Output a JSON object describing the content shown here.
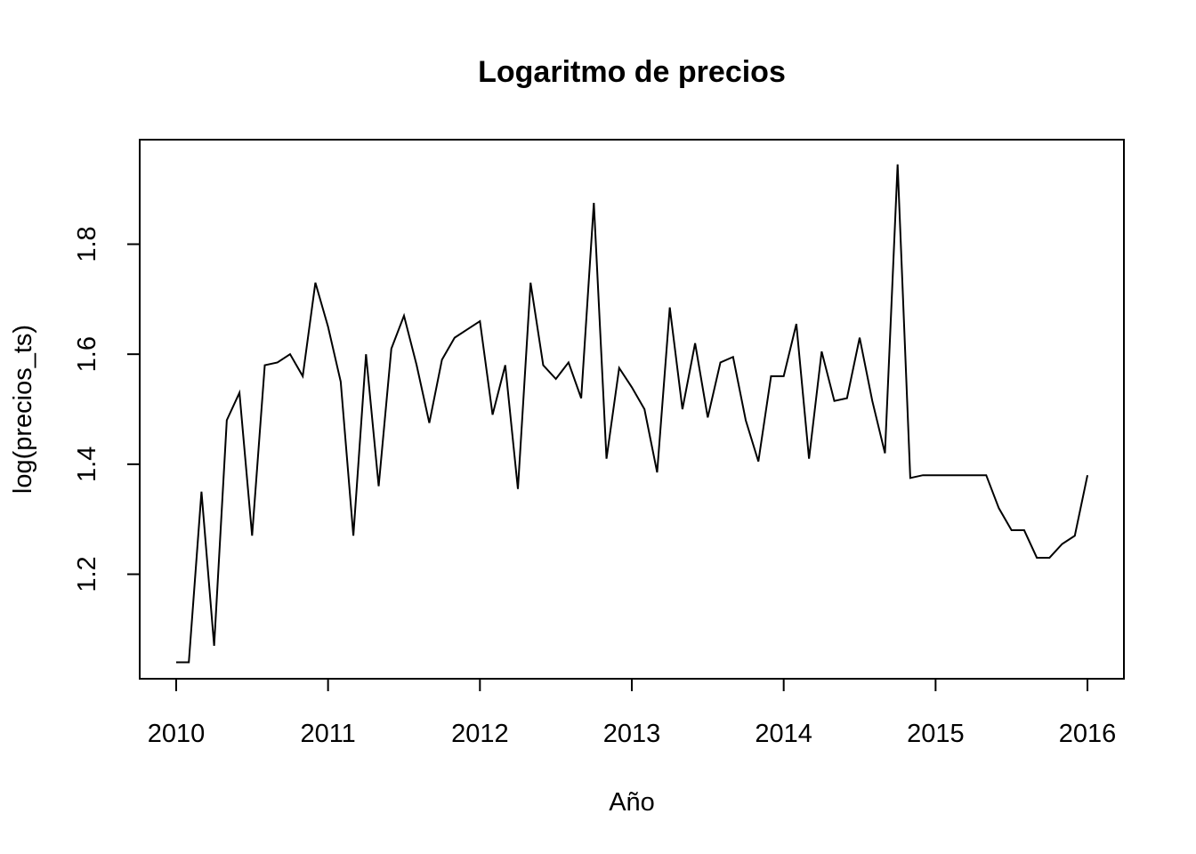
{
  "chart_data": {
    "type": "line",
    "title": "Logaritmo de precios",
    "xlabel": "Año",
    "ylabel": "log(precios_ts)",
    "xlim": [
      2009.76,
      2016.24
    ],
    "ylim": [
      1.01,
      1.99
    ],
    "x_ticks": [
      2010,
      2011,
      2012,
      2013,
      2014,
      2015,
      2016
    ],
    "x_tick_labels": [
      "2010",
      "2011",
      "2012",
      "2013",
      "2014",
      "2015",
      "2016"
    ],
    "y_ticks": [
      1.2,
      1.4,
      1.6,
      1.8
    ],
    "y_tick_labels": [
      "1.2",
      "1.4",
      "1.6",
      "1.8"
    ],
    "grid": false,
    "legend": "none",
    "series": [
      {
        "start": 2010,
        "frequency": 12,
        "values": [
          1.04,
          1.04,
          1.35,
          1.07,
          1.48,
          1.53,
          1.27,
          1.58,
          1.585,
          1.6,
          1.56,
          1.73,
          1.65,
          1.55,
          1.27,
          1.6,
          1.36,
          1.61,
          1.67,
          1.58,
          1.475,
          1.59,
          1.63,
          1.645,
          1.66,
          1.49,
          1.58,
          1.355,
          1.73,
          1.58,
          1.555,
          1.585,
          1.52,
          1.875,
          1.41,
          1.575,
          1.54,
          1.5,
          1.385,
          1.685,
          1.5,
          1.62,
          1.485,
          1.585,
          1.595,
          1.48,
          1.405,
          1.56,
          1.56,
          1.655,
          1.41,
          1.605,
          1.515,
          1.52,
          1.63,
          1.515,
          1.42,
          1.945,
          1.375,
          1.38,
          1.38,
          1.38,
          1.38,
          1.38,
          1.38,
          1.32,
          1.28,
          1.28,
          1.23,
          1.23,
          1.255,
          1.27,
          1.38
        ]
      }
    ]
  }
}
